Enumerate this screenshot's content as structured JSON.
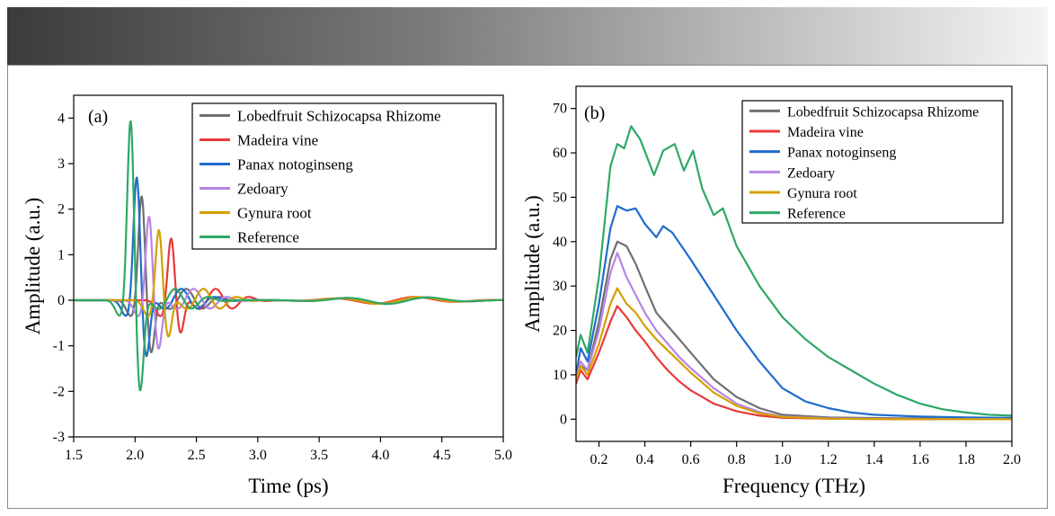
{
  "chart_data": [
    {
      "type": "line",
      "panel_label": "(a)",
      "xlabel": "Time (ps)",
      "ylabel": "Amplitude (a.u.)",
      "xlim": [
        1.5,
        5.0
      ],
      "ylim": [
        -3,
        4.5
      ],
      "xticks": [
        1.5,
        2.0,
        2.5,
        3.0,
        3.5,
        4.0,
        4.5,
        5.0
      ],
      "xtick_labels": [
        "1.5",
        "2.0",
        "2.5",
        "3.0",
        "3.5",
        "4.0",
        "4.5",
        "5.0"
      ],
      "yticks": [
        -3,
        -2,
        -1,
        0,
        1,
        2,
        3,
        4
      ],
      "ytick_labels": [
        "-3",
        "-2",
        "-1",
        "0",
        "1",
        "2",
        "3",
        "4"
      ],
      "legend_position": "top-right",
      "series": [
        {
          "name": "Lobedfruit Schizocapsa Rhizome",
          "color": "#707070",
          "peak_time": 2.06,
          "peak_value": 2.32,
          "trough_value": -1.4
        },
        {
          "name": "Madeira vine",
          "color": "#e8393a",
          "peak_time": 2.3,
          "peak_value": 1.4,
          "trough_value": -0.9
        },
        {
          "name": "Panax notoginseng",
          "color": "#1f6ccc",
          "peak_time": 2.02,
          "peak_value": 2.73,
          "trough_value": -1.5
        },
        {
          "name": "Zedoary",
          "color": "#b784e6",
          "peak_time": 2.12,
          "peak_value": 1.88,
          "trough_value": -1.3
        },
        {
          "name": "Gynura root",
          "color": "#d4a000",
          "peak_time": 2.2,
          "peak_value": 1.58,
          "trough_value": -1.0
        },
        {
          "name": "Reference",
          "color": "#2fa866",
          "peak_time": 1.97,
          "peak_value": 3.97,
          "trough_value": -2.36
        }
      ]
    },
    {
      "type": "line",
      "panel_label": "(b)",
      "xlabel": "Frequency (THz)",
      "ylabel": "Amplitude (a.u.)",
      "xlim": [
        0.1,
        2.0
      ],
      "ylim": [
        -5,
        75
      ],
      "xticks": [
        0.2,
        0.4,
        0.6,
        0.8,
        1.0,
        1.2,
        1.4,
        1.6,
        1.8,
        2.0
      ],
      "xtick_labels": [
        "0.2",
        "0.4",
        "0.6",
        "0.8",
        "1.0",
        "1.2",
        "1.4",
        "1.6",
        "1.8",
        "2.0"
      ],
      "yticks": [
        0,
        10,
        20,
        30,
        40,
        50,
        60,
        70
      ],
      "ytick_labels": [
        "0",
        "10",
        "20",
        "30",
        "40",
        "50",
        "60",
        "70"
      ],
      "legend_position": "top-right",
      "series": [
        {
          "name": "Lobedfruit Schizocapsa Rhizome",
          "color": "#707070",
          "x": [
            0.1,
            0.12,
            0.15,
            0.2,
            0.25,
            0.28,
            0.32,
            0.36,
            0.4,
            0.45,
            0.5,
            0.55,
            0.6,
            0.7,
            0.8,
            0.9,
            1.0,
            1.2,
            1.5,
            2.0
          ],
          "y": [
            8,
            12,
            11,
            22,
            36,
            40,
            39,
            35,
            30,
            24,
            21,
            18,
            15,
            9,
            5,
            2.5,
            1,
            0.4,
            0.2,
            0.2
          ]
        },
        {
          "name": "Madeira vine",
          "color": "#e8393a",
          "x": [
            0.1,
            0.12,
            0.15,
            0.2,
            0.25,
            0.28,
            0.32,
            0.36,
            0.4,
            0.45,
            0.5,
            0.55,
            0.6,
            0.7,
            0.8,
            0.9,
            1.0,
            1.2,
            1.5,
            2.0
          ],
          "y": [
            8,
            11,
            9,
            15,
            22,
            25.5,
            23,
            20,
            17.5,
            14,
            11,
            8.5,
            6.5,
            3.5,
            1.8,
            0.8,
            0.3,
            0.1,
            0.0,
            0.0
          ]
        },
        {
          "name": "Panax notoginseng",
          "color": "#1f6ccc",
          "x": [
            0.1,
            0.12,
            0.15,
            0.2,
            0.25,
            0.28,
            0.32,
            0.36,
            0.4,
            0.45,
            0.48,
            0.52,
            0.6,
            0.7,
            0.8,
            0.9,
            1.0,
            1.1,
            1.2,
            1.3,
            1.4,
            1.6,
            1.8,
            2.0
          ],
          "y": [
            10,
            16,
            13,
            26,
            43,
            48,
            47,
            47.5,
            44,
            41,
            43.5,
            42,
            36,
            28,
            20,
            13,
            7,
            4,
            2.5,
            1.5,
            1,
            0.6,
            0.4,
            0.3
          ]
        },
        {
          "name": "Zedoary",
          "color": "#b784e6",
          "x": [
            0.1,
            0.12,
            0.15,
            0.2,
            0.25,
            0.28,
            0.32,
            0.36,
            0.4,
            0.45,
            0.5,
            0.55,
            0.6,
            0.7,
            0.8,
            0.9,
            1.0,
            1.2,
            1.5,
            2.0
          ],
          "y": [
            9,
            13,
            11,
            20,
            33,
            37.5,
            32,
            28,
            24,
            20,
            17,
            14,
            11.5,
            7,
            3.5,
            1.6,
            0.6,
            0.2,
            0.0,
            0.0
          ]
        },
        {
          "name": "Gynura root",
          "color": "#d4a000",
          "x": [
            0.1,
            0.12,
            0.15,
            0.2,
            0.25,
            0.28,
            0.32,
            0.36,
            0.4,
            0.45,
            0.5,
            0.55,
            0.6,
            0.7,
            0.8,
            0.9,
            1.0,
            1.2,
            1.5,
            2.0
          ],
          "y": [
            9,
            12,
            10,
            17,
            26,
            29.5,
            26,
            24,
            21,
            18,
            15.5,
            13,
            10.5,
            6,
            3,
            1.3,
            0.5,
            0.1,
            0.0,
            0.0
          ]
        },
        {
          "name": "Reference",
          "color": "#2fa866",
          "x": [
            0.1,
            0.12,
            0.15,
            0.2,
            0.25,
            0.28,
            0.31,
            0.34,
            0.38,
            0.44,
            0.48,
            0.53,
            0.57,
            0.61,
            0.65,
            0.7,
            0.74,
            0.8,
            0.9,
            1.0,
            1.1,
            1.2,
            1.3,
            1.4,
            1.5,
            1.6,
            1.7,
            1.8,
            1.9,
            2.0
          ],
          "y": [
            14,
            19,
            15,
            32,
            57,
            62,
            61,
            66,
            63,
            55,
            60.5,
            62,
            56,
            60.5,
            52,
            46,
            47.5,
            39,
            30,
            23,
            18,
            14,
            11,
            8,
            5.5,
            3.5,
            2.2,
            1.5,
            1.0,
            0.8
          ]
        }
      ]
    }
  ]
}
